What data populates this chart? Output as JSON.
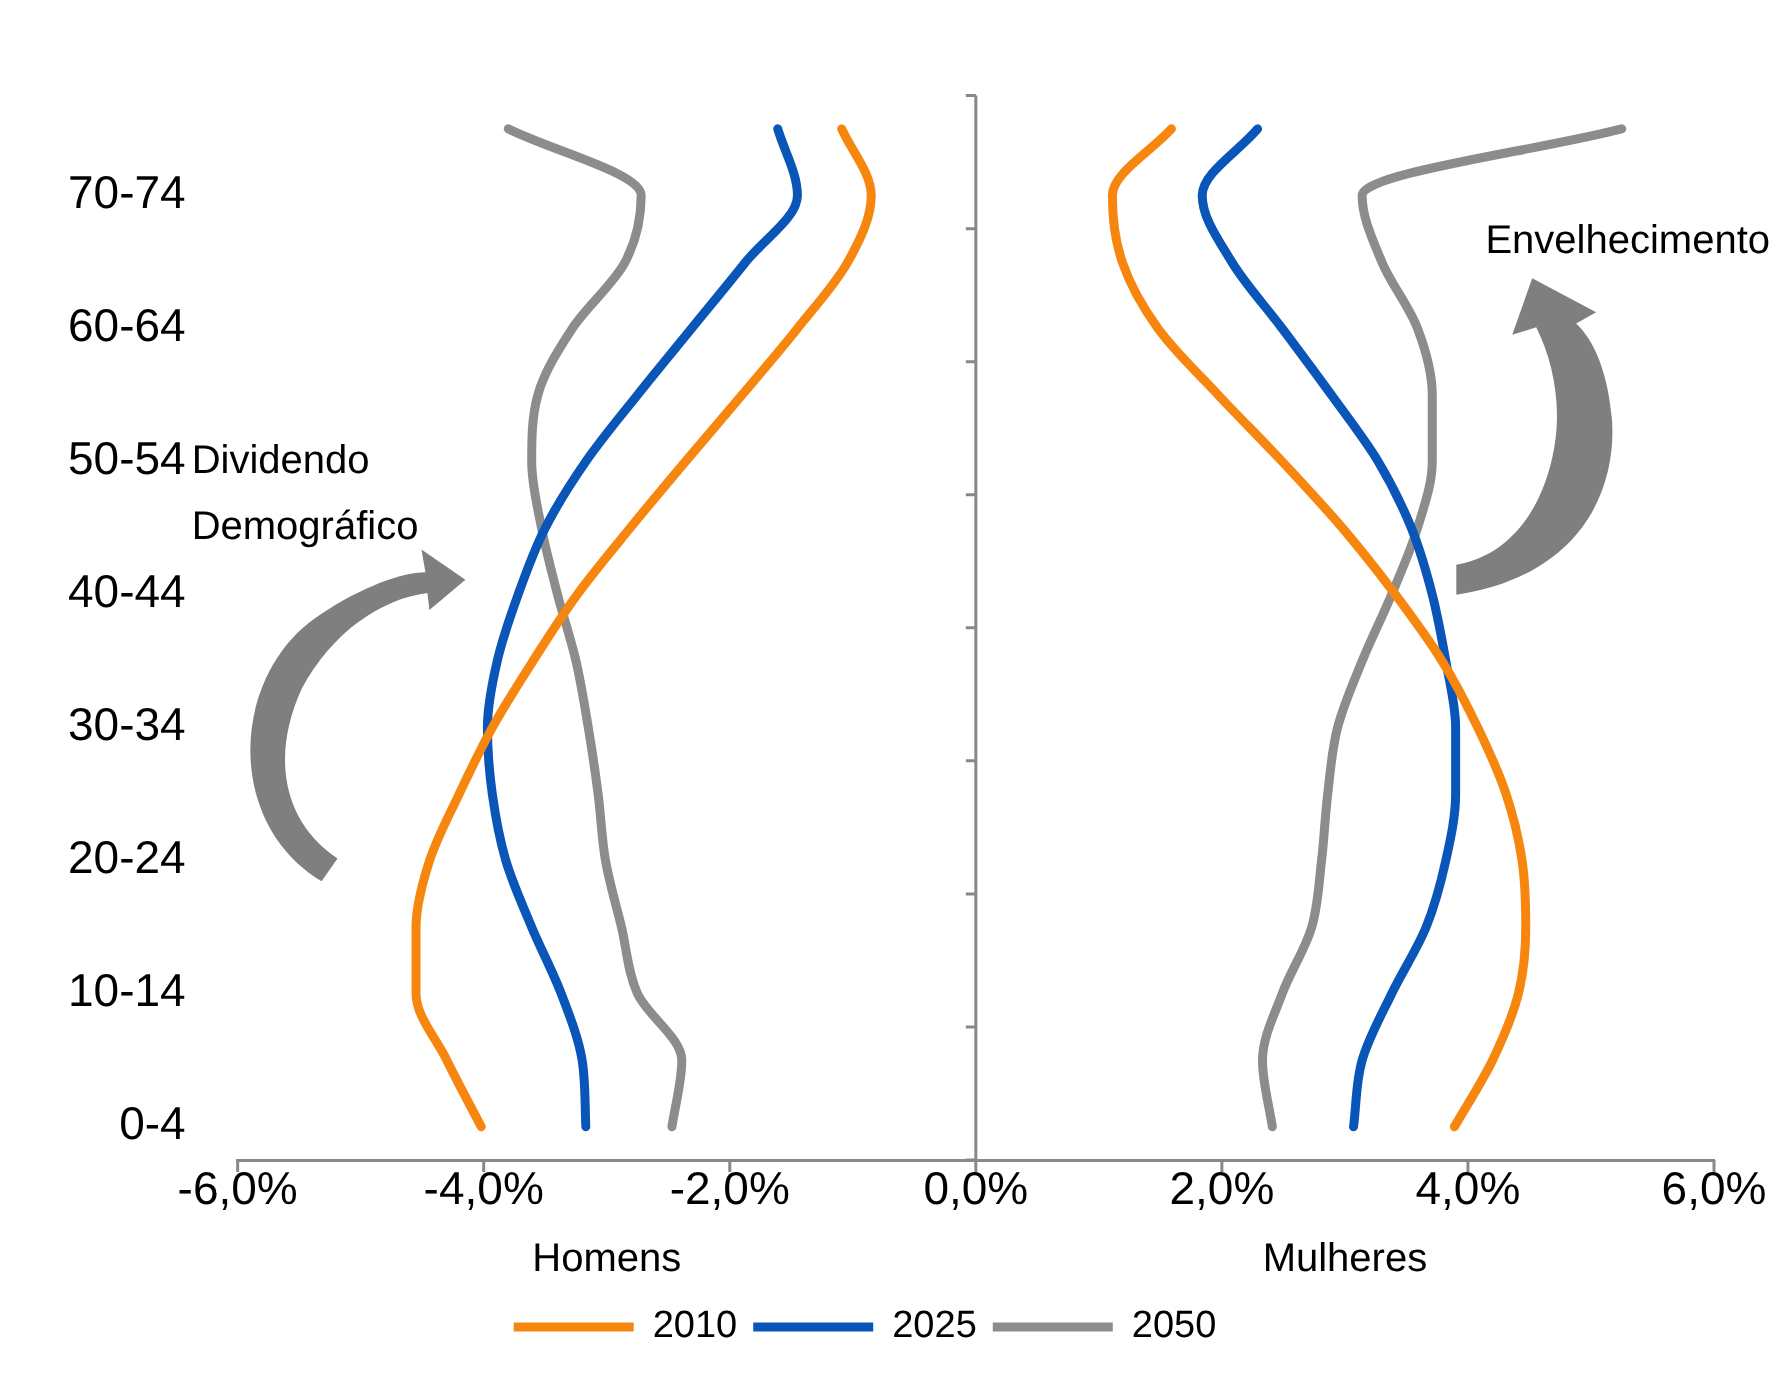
{
  "chart_data": {
    "type": "line",
    "categories": [
      null,
      "70-74",
      null,
      "60-64",
      null,
      "50-54",
      null,
      "40-44",
      null,
      "30-34",
      null,
      "20-24",
      null,
      "10-14",
      null,
      "0-4"
    ],
    "series": [
      {
        "name": "2010",
        "color": "#f7860f",
        "values": [
          1.59,
          1.11,
          1.19,
          1.48,
          1.97,
          2.49,
          2.98,
          3.41,
          3.79,
          4.08,
          4.31,
          4.44,
          4.47,
          4.41,
          4.2,
          3.89
        ]
      },
      {
        "color": "#f7860f",
        "values": [
          -1.09,
          -0.85,
          -1.04,
          -1.45,
          -1.9,
          -2.36,
          -2.81,
          -3.24,
          -3.6,
          -3.93,
          -4.2,
          -4.44,
          -4.55,
          -4.55,
          -4.3,
          -4.02
        ]
      },
      {
        "name": "2025",
        "color": "#0a56b8",
        "values": [
          2.29,
          1.84,
          2.08,
          2.49,
          2.89,
          3.27,
          3.54,
          3.71,
          3.82,
          3.9,
          3.9,
          3.82,
          3.66,
          3.38,
          3.14,
          3.07
        ]
      },
      {
        "color": "#0a56b8",
        "values": [
          -1.61,
          -1.45,
          -1.87,
          -2.31,
          -2.75,
          -3.17,
          -3.5,
          -3.72,
          -3.89,
          -3.97,
          -3.93,
          -3.82,
          -3.61,
          -3.37,
          -3.2,
          -3.17
        ]
      },
      {
        "name": "2050",
        "color": "#8c8c8c",
        "values": [
          5.25,
          3.14,
          3.3,
          3.59,
          3.71,
          3.71,
          3.59,
          3.38,
          3.14,
          2.94,
          2.86,
          2.81,
          2.73,
          2.49,
          2.33,
          2.41
        ]
      },
      {
        "color": "#8c8c8c",
        "values": [
          -3.8,
          -2.72,
          -2.85,
          -3.28,
          -3.56,
          -3.61,
          -3.53,
          -3.4,
          -3.25,
          -3.15,
          -3.07,
          -3.01,
          -2.88,
          -2.75,
          -2.39,
          -2.47
        ]
      }
    ],
    "orientation": "horizontal",
    "xlim": [
      -6,
      6
    ],
    "xticks": [
      {
        "value": -6,
        "label": "-6,0%"
      },
      {
        "value": -4,
        "label": "-4,0%"
      },
      {
        "value": -2,
        "label": "-2,0%"
      },
      {
        "value": 0,
        "label": "0,0%"
      },
      {
        "value": 2,
        "label": "2,0%"
      },
      {
        "value": 4,
        "label": "4,0%"
      },
      {
        "value": 6,
        "label": "6,0%"
      }
    ],
    "annotations": [
      "Dividendo Demográfico",
      "Envelhecimento",
      "Homens",
      "Mulheres"
    ],
    "ref_lines": [
      {
        "axis": "x",
        "value": 0,
        "color": "#888888"
      }
    ],
    "legend": "bottom",
    "grid": false,
    "marker": "none",
    "line_style": "solid"
  }
}
